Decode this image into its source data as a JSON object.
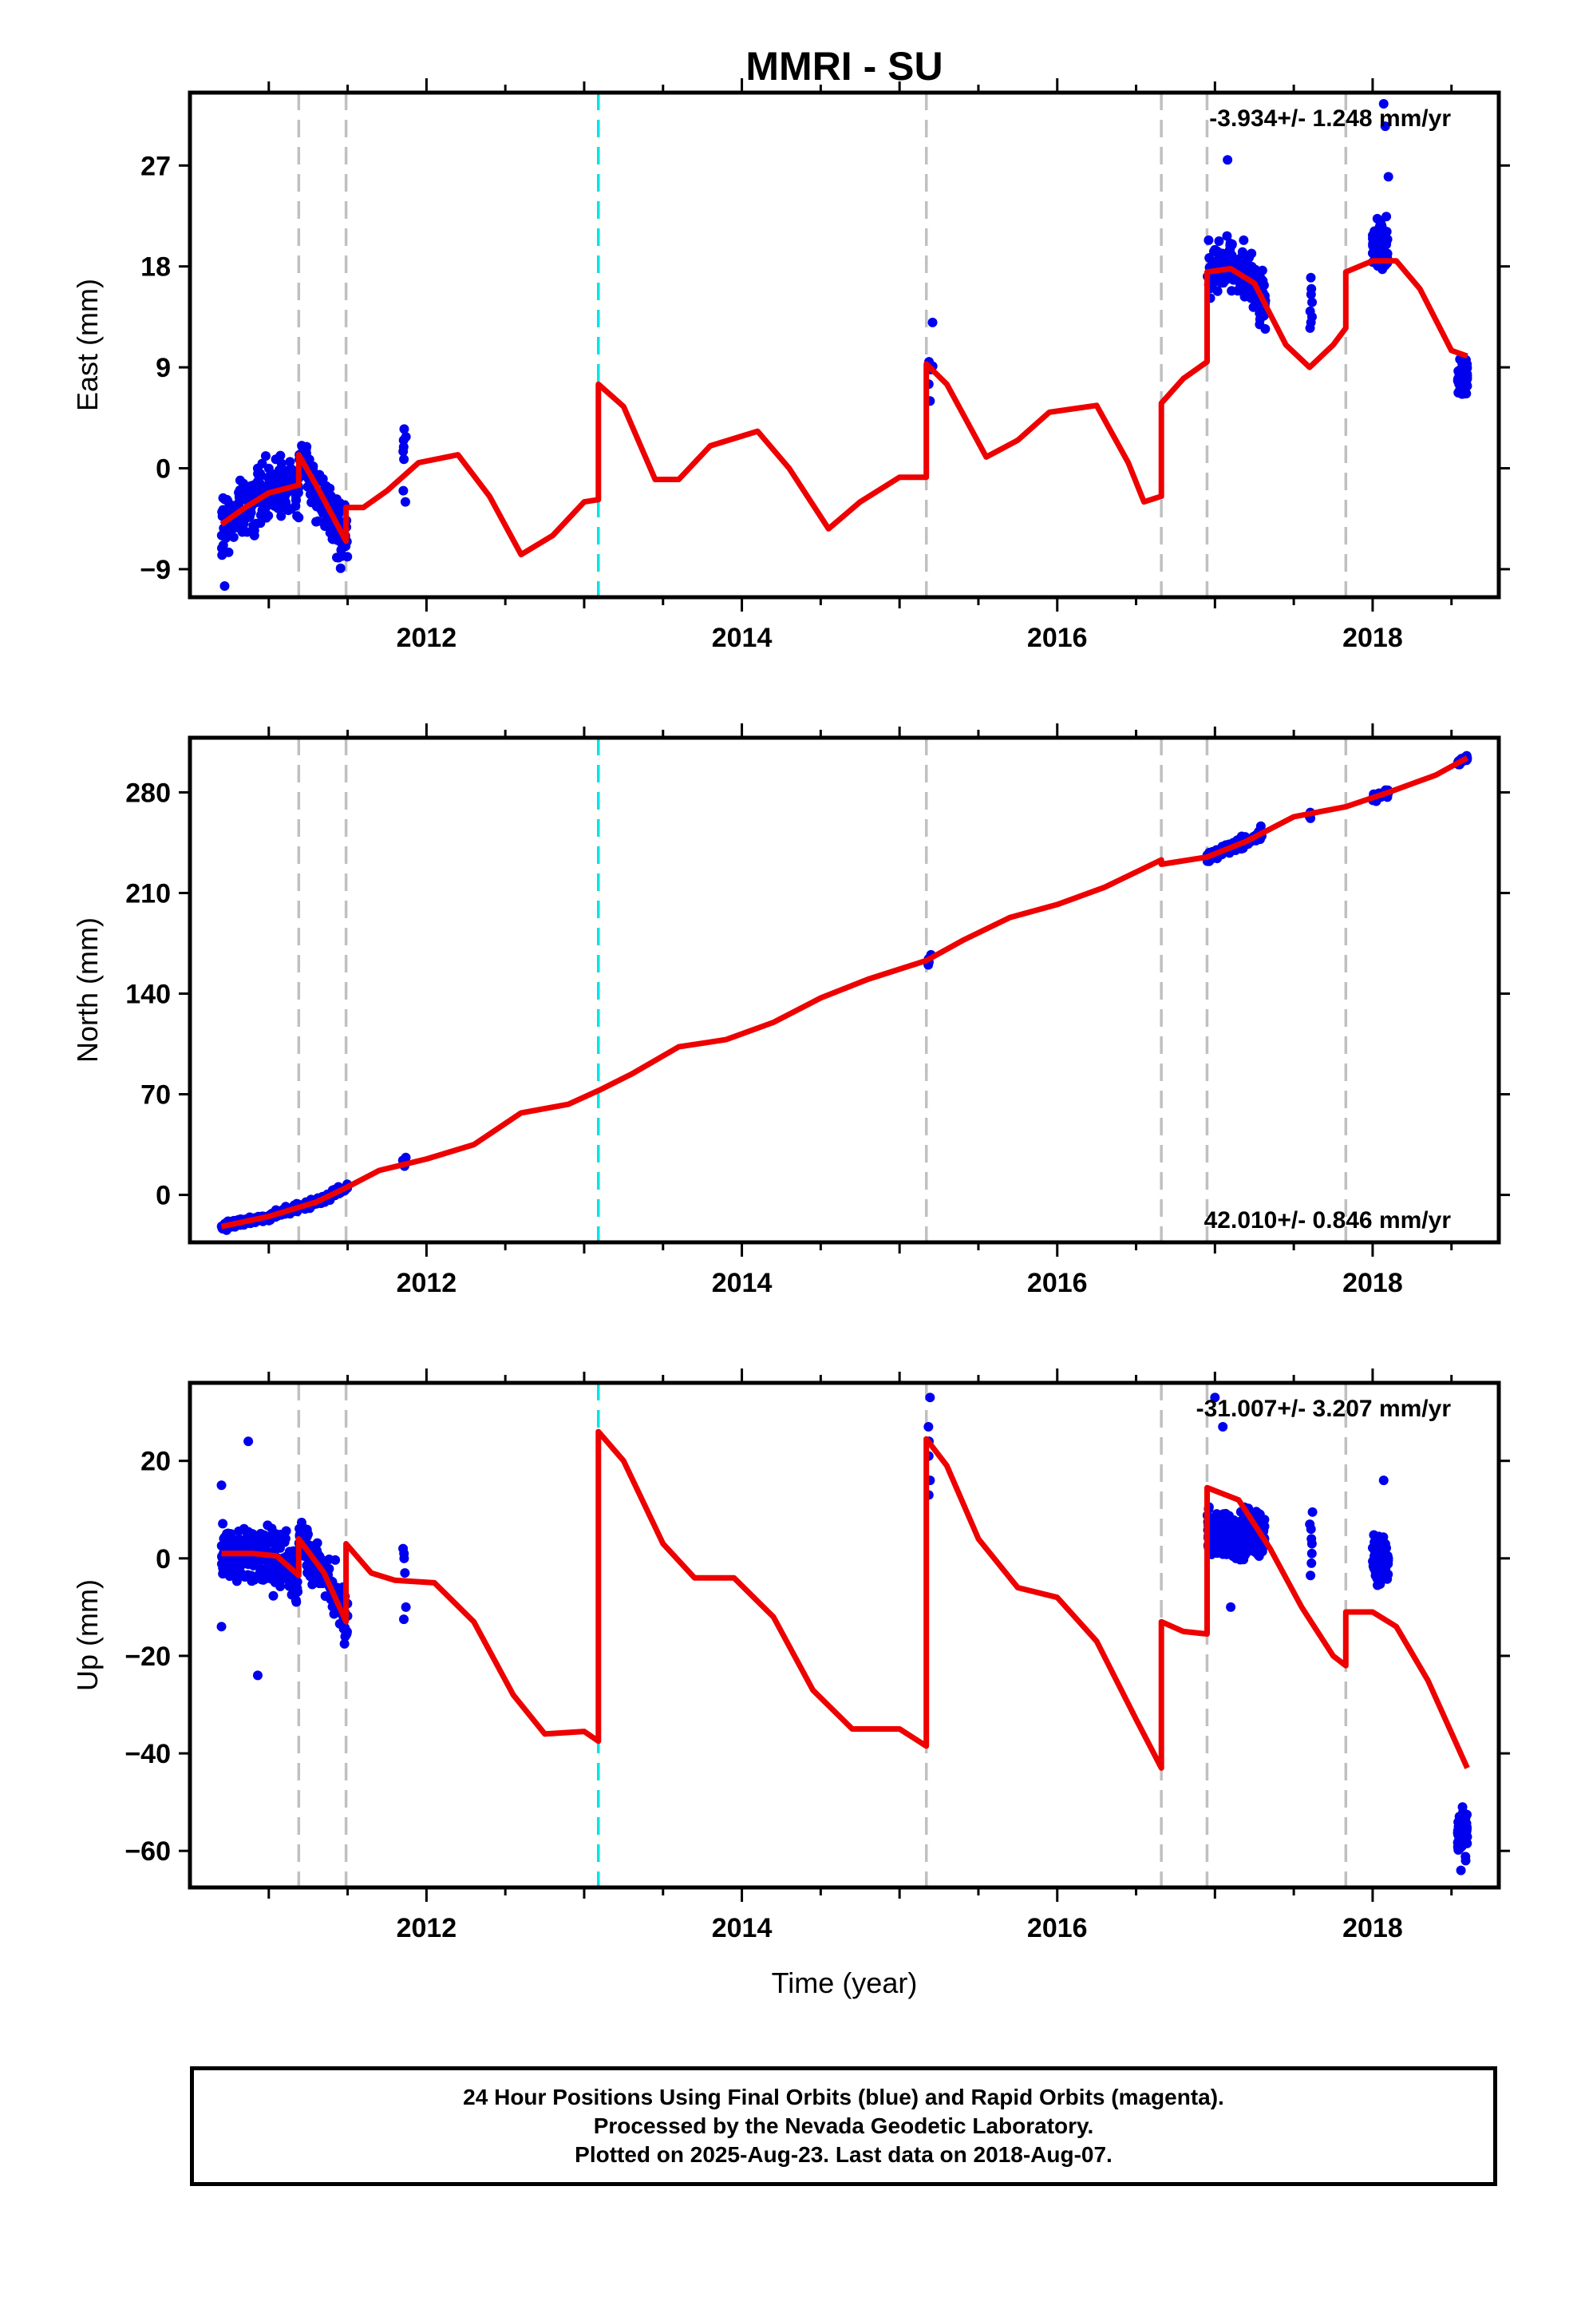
{
  "title": "MMRI - SU",
  "xlabel": "Time (year)",
  "footer": {
    "line1": "24 Hour Positions Using Final Orbits (blue) and Rapid Orbits (magenta).",
    "line2": "Processed by the Nevada Geodetic Laboratory.",
    "line3": "Plotted on 2025-Aug-23. Last data on 2018-Aug-07."
  },
  "colors": {
    "points": "#0000ee",
    "model": "#ee0000",
    "break_gray": "#c0c0c0",
    "break_cyan": "#00e5e5"
  },
  "chart_data": [
    {
      "type": "scatter",
      "component": "East",
      "ylabel": "East (mm)",
      "rate": "-3.934+/- 1.248 mm/yr",
      "xlim": [
        2010.5,
        2018.8
      ],
      "ylim": [
        -11.5,
        33.5
      ],
      "yticks": [
        -9,
        0,
        9,
        18,
        27
      ],
      "xticks": [
        2012,
        2014,
        2016,
        2018
      ],
      "breaks_gray": [
        2011.19,
        2011.49,
        2015.17,
        2016.66,
        2016.95,
        2017.83
      ],
      "breaks_cyan": [
        2013.09
      ],
      "model_segments": [
        [
          [
            2010.7,
            -5
          ],
          [
            2010.85,
            -3.5
          ],
          [
            2011.0,
            -2.2
          ],
          [
            2011.19,
            -1.5
          ]
        ],
        [
          [
            2011.19,
            1.2
          ],
          [
            2011.3,
            -1.5
          ],
          [
            2011.49,
            -6.5
          ]
        ],
        [
          [
            2011.49,
            -3.5
          ],
          [
            2011.6,
            -3.5
          ],
          [
            2011.75,
            -2
          ],
          [
            2011.95,
            0.5
          ],
          [
            2012.2,
            1.2
          ],
          [
            2012.4,
            -2.5
          ],
          [
            2012.6,
            -7.7
          ],
          [
            2012.8,
            -6
          ],
          [
            2013.0,
            -3
          ],
          [
            2013.09,
            -2.8
          ]
        ],
        [
          [
            2013.09,
            7.5
          ],
          [
            2013.25,
            5.5
          ],
          [
            2013.45,
            -1
          ],
          [
            2013.6,
            -1
          ],
          [
            2013.8,
            2
          ],
          [
            2014.1,
            3.3
          ],
          [
            2014.3,
            0
          ],
          [
            2014.55,
            -5.4
          ],
          [
            2014.75,
            -3
          ],
          [
            2015.0,
            -0.8
          ],
          [
            2015.17,
            -0.8
          ]
        ],
        [
          [
            2015.17,
            9.3
          ],
          [
            2015.3,
            7.5
          ],
          [
            2015.55,
            1
          ],
          [
            2015.75,
            2.5
          ],
          [
            2015.95,
            5
          ],
          [
            2016.25,
            5.6
          ],
          [
            2016.45,
            0.5
          ],
          [
            2016.55,
            -3
          ],
          [
            2016.66,
            -2.5
          ]
        ],
        [
          [
            2016.66,
            5.8
          ],
          [
            2016.8,
            8
          ],
          [
            2016.95,
            9.5
          ]
        ],
        [
          [
            2016.95,
            17.5
          ],
          [
            2017.1,
            17.8
          ],
          [
            2017.25,
            16.5
          ],
          [
            2017.45,
            11
          ],
          [
            2017.6,
            9
          ],
          [
            2017.75,
            11
          ],
          [
            2017.83,
            12.5
          ]
        ],
        [
          [
            2017.83,
            17.5
          ],
          [
            2018.0,
            18.5
          ],
          [
            2018.15,
            18.5
          ],
          [
            2018.3,
            16
          ],
          [
            2018.5,
            10.5
          ],
          [
            2018.6,
            10
          ]
        ]
      ],
      "point_groups": [
        {
          "x0": 2010.7,
          "x1": 2011.5,
          "n": 380,
          "spread": 2.5,
          "segment": [
            0,
            1
          ]
        },
        {
          "x0": 2011.85,
          "x1": 2011.87,
          "n": 8,
          "values": [
            3.5,
            2.5,
            1.5,
            0.8,
            -2.0,
            -3.0,
            2.8,
            1.9
          ]
        },
        {
          "x0": 2015.18,
          "x1": 2015.21,
          "n": 6,
          "values": [
            13,
            9.5,
            8.8,
            7.5,
            6,
            9.1
          ]
        },
        {
          "x0": 2016.95,
          "x1": 2017.32,
          "n": 180,
          "spread": 2.3,
          "segment": [
            6
          ]
        },
        {
          "x0": 2017.6,
          "x1": 2017.62,
          "n": 8,
          "values": [
            17,
            15.5,
            14,
            13,
            12.5,
            16,
            14.8,
            13.5
          ]
        },
        {
          "x0": 2018.0,
          "x1": 2018.1,
          "n": 90,
          "spread": 2.2,
          "base": 20
        },
        {
          "x0": 2018.54,
          "x1": 2018.6,
          "n": 80,
          "spread": 1.5,
          "base": 8
        }
      ],
      "outliers": [
        [
          2010.72,
          -10.5
        ],
        [
          2017.08,
          27.5
        ],
        [
          2018.07,
          32.5
        ],
        [
          2018.08,
          30.5
        ],
        [
          2018.1,
          26
        ]
      ]
    },
    {
      "type": "scatter",
      "component": "North",
      "ylabel": "North (mm)",
      "rate": "42.010+/- 0.846 mm/yr",
      "xlim": [
        2010.5,
        2018.8
      ],
      "ylim": [
        -33,
        318
      ],
      "yticks": [
        0,
        70,
        140,
        210,
        280
      ],
      "xticks": [
        2012,
        2014,
        2016,
        2018
      ],
      "breaks_gray": [
        2011.19,
        2011.49,
        2015.17,
        2016.66,
        2016.95,
        2017.83
      ],
      "breaks_cyan": [
        2013.09
      ],
      "model_segments": [
        [
          [
            2010.7,
            -22
          ],
          [
            2011.0,
            -15
          ],
          [
            2011.3,
            -5
          ],
          [
            2011.49,
            5
          ],
          [
            2011.7,
            17
          ],
          [
            2012.0,
            25
          ],
          [
            2012.3,
            35
          ],
          [
            2012.6,
            57
          ],
          [
            2012.9,
            63
          ],
          [
            2013.1,
            73
          ],
          [
            2013.3,
            84
          ],
          [
            2013.6,
            103
          ],
          [
            2013.9,
            108
          ],
          [
            2014.2,
            120
          ],
          [
            2014.5,
            137
          ],
          [
            2014.8,
            150
          ],
          [
            2015.17,
            163
          ],
          [
            2015.4,
            177
          ],
          [
            2015.7,
            193
          ],
          [
            2016.0,
            202
          ],
          [
            2016.3,
            214
          ],
          [
            2016.66,
            233
          ]
        ],
        [
          [
            2016.66,
            230
          ],
          [
            2016.95,
            235
          ],
          [
            2017.2,
            246
          ],
          [
            2017.5,
            263
          ],
          [
            2017.83,
            270
          ],
          [
            2018.1,
            280
          ],
          [
            2018.4,
            292
          ],
          [
            2018.6,
            304
          ]
        ]
      ],
      "point_groups": [
        {
          "x0": 2010.7,
          "x1": 2011.5,
          "n": 300,
          "spread": 2.5,
          "segment": [
            0
          ]
        },
        {
          "x0": 2011.85,
          "x1": 2011.87,
          "n": 5,
          "values": [
            20,
            22,
            24,
            26,
            23
          ]
        },
        {
          "x0": 2015.18,
          "x1": 2015.21,
          "n": 4,
          "values": [
            160,
            164,
            167,
            162
          ]
        },
        {
          "x0": 2016.95,
          "x1": 2017.3,
          "n": 150,
          "spread": 3.5,
          "segment": [
            1
          ]
        },
        {
          "x0": 2017.6,
          "x1": 2017.62,
          "n": 5,
          "values": [
            262,
            265,
            266,
            263,
            264
          ]
        },
        {
          "x0": 2018.0,
          "x1": 2018.1,
          "n": 60,
          "spread": 2.5,
          "segment": [
            1
          ]
        },
        {
          "x0": 2018.54,
          "x1": 2018.6,
          "n": 60,
          "spread": 1.5,
          "segment": [
            1
          ]
        }
      ],
      "outliers": []
    },
    {
      "type": "scatter",
      "component": "Up",
      "ylabel": "Up (mm)",
      "rate": "-31.007+/- 3.207 mm/yr",
      "xlim": [
        2010.5,
        2018.8
      ],
      "ylim": [
        -67.5,
        36
      ],
      "yticks": [
        -60,
        -40,
        -20,
        0,
        20
      ],
      "xticks": [
        2012,
        2014,
        2016,
        2018
      ],
      "breaks_gray": [
        2011.19,
        2011.49,
        2015.17,
        2016.66,
        2016.95,
        2017.83
      ],
      "breaks_cyan": [
        2013.09
      ],
      "model_segments": [
        [
          [
            2010.7,
            1
          ],
          [
            2010.9,
            1
          ],
          [
            2011.05,
            0.5
          ],
          [
            2011.19,
            -3.5
          ]
        ],
        [
          [
            2011.19,
            4
          ],
          [
            2011.35,
            -3
          ],
          [
            2011.49,
            -13
          ]
        ],
        [
          [
            2011.49,
            3
          ],
          [
            2011.65,
            -3
          ],
          [
            2011.8,
            -4.5
          ],
          [
            2012.05,
            -5
          ],
          [
            2012.3,
            -13
          ],
          [
            2012.55,
            -28
          ],
          [
            2012.75,
            -36
          ],
          [
            2013.0,
            -35.5
          ],
          [
            2013.09,
            -37.5
          ]
        ],
        [
          [
            2013.09,
            26
          ],
          [
            2013.25,
            20
          ],
          [
            2013.5,
            3
          ],
          [
            2013.7,
            -4
          ],
          [
            2013.95,
            -4
          ],
          [
            2014.2,
            -12
          ],
          [
            2014.45,
            -27
          ],
          [
            2014.7,
            -35
          ],
          [
            2015.0,
            -35
          ],
          [
            2015.17,
            -38.5
          ]
        ],
        [
          [
            2015.17,
            24.5
          ],
          [
            2015.3,
            19
          ],
          [
            2015.5,
            4
          ],
          [
            2015.75,
            -6
          ],
          [
            2016.0,
            -8
          ],
          [
            2016.25,
            -17
          ],
          [
            2016.5,
            -33
          ],
          [
            2016.66,
            -43
          ]
        ],
        [
          [
            2016.66,
            -13
          ],
          [
            2016.8,
            -15
          ],
          [
            2016.95,
            -15.5
          ]
        ],
        [
          [
            2016.95,
            14.5
          ],
          [
            2017.15,
            12
          ],
          [
            2017.35,
            2
          ],
          [
            2017.55,
            -10
          ],
          [
            2017.75,
            -20
          ],
          [
            2017.83,
            -22
          ]
        ],
        [
          [
            2017.83,
            -11
          ],
          [
            2018.0,
            -11
          ],
          [
            2018.15,
            -14
          ],
          [
            2018.35,
            -25
          ],
          [
            2018.6,
            -43
          ]
        ]
      ],
      "point_groups": [
        {
          "x0": 2010.7,
          "x1": 2011.5,
          "n": 420,
          "spread": 5,
          "segment": [
            0,
            1
          ]
        },
        {
          "x0": 2011.85,
          "x1": 2011.87,
          "n": 6,
          "values": [
            2,
            1,
            0,
            -10,
            -12.5,
            -3
          ]
        },
        {
          "x0": 2015.18,
          "x1": 2015.21,
          "n": 6,
          "values": [
            33,
            27,
            24,
            21,
            16,
            13
          ]
        },
        {
          "x0": 2016.95,
          "x1": 2017.32,
          "n": 200,
          "spread": 5,
          "base": 5
        },
        {
          "x0": 2017.6,
          "x1": 2017.62,
          "n": 8,
          "values": [
            9.5,
            6,
            3,
            1,
            -1,
            -3.5,
            7,
            4
          ]
        },
        {
          "x0": 2018.0,
          "x1": 2018.1,
          "n": 80,
          "spread": 5,
          "base": 0
        },
        {
          "x0": 2018.54,
          "x1": 2018.6,
          "n": 80,
          "spread": 4,
          "base": -56
        }
      ],
      "outliers": [
        [
          2010.7,
          15
        ],
        [
          2010.87,
          24
        ],
        [
          2010.93,
          -24
        ],
        [
          2010.7,
          -14
        ],
        [
          2017.0,
          33
        ],
        [
          2017.05,
          27
        ],
        [
          2017.1,
          -10
        ],
        [
          2018.07,
          16
        ],
        [
          2018.56,
          -64
        ],
        [
          2018.59,
          -62
        ]
      ]
    }
  ]
}
